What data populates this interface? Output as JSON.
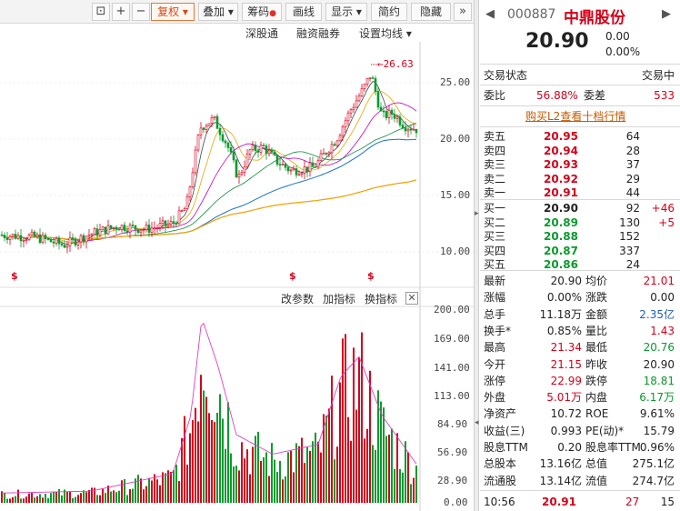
{
  "toolbar": {
    "fuquan_label": "复权",
    "diejia_label": "叠加",
    "chouma_label": "筹码",
    "huaxian_label": "画线",
    "xianshi_label": "显示",
    "jianyue_label": "简约",
    "yincang_label": "隐藏"
  },
  "subtoolbar": {
    "shengutong": "深股通",
    "rongzi": "融资融券",
    "ma_settings": "设置均线"
  },
  "price_axis": [
    "25.00",
    "20.00",
    "15.00",
    "10.00"
  ],
  "volume_axis": [
    "200.00",
    "169.00",
    "141.00",
    "113.00",
    "84.90",
    "56.90",
    "28.90",
    "0.00"
  ],
  "high_marker": "26.63",
  "vol_tools": {
    "change_params": "改参数",
    "add_indicator": "加指标",
    "switch_indicator": "换指标"
  },
  "quote": {
    "code": "000887",
    "name": "中鼎股份",
    "price": "20.90",
    "change": "0.00",
    "change_pct": "0.00%",
    "status_label": "交易状态",
    "status_value": "交易中",
    "weibi_label": "委比",
    "weibi_value": "56.88%",
    "weicha_label": "委差",
    "weicha_value": "533",
    "l2_link": "购买L2查看十档行情"
  },
  "asks": [
    {
      "label": "卖五",
      "price": "20.95",
      "vol": "64",
      "delta": ""
    },
    {
      "label": "卖四",
      "price": "20.94",
      "vol": "28",
      "delta": ""
    },
    {
      "label": "卖三",
      "price": "20.93",
      "vol": "37",
      "delta": ""
    },
    {
      "label": "卖二",
      "price": "20.92",
      "vol": "29",
      "delta": ""
    },
    {
      "label": "卖一",
      "price": "20.91",
      "vol": "44",
      "delta": ""
    }
  ],
  "bids": [
    {
      "label": "买一",
      "price": "20.90",
      "vol": "92",
      "delta": "+46"
    },
    {
      "label": "买二",
      "price": "20.89",
      "vol": "130",
      "delta": "+5"
    },
    {
      "label": "买三",
      "price": "20.88",
      "vol": "152",
      "delta": ""
    },
    {
      "label": "买四",
      "price": "20.87",
      "vol": "337",
      "delta": ""
    },
    {
      "label": "买五",
      "price": "20.86",
      "vol": "24",
      "delta": ""
    }
  ],
  "stats": [
    {
      "l1": "最新",
      "v1": "20.90",
      "c1": "",
      "l2": "均价",
      "v2": "21.01",
      "c2": "red"
    },
    {
      "l1": "涨幅",
      "v1": "0.00%",
      "c1": "",
      "l2": "涨跌",
      "v2": "0.00",
      "c2": ""
    },
    {
      "l1": "总手",
      "v1": "11.18万",
      "c1": "",
      "l2": "金额",
      "v2": "2.35亿",
      "c2": "blue"
    },
    {
      "l1": "换手*",
      "v1": "0.85%",
      "c1": "",
      "l2": "量比",
      "v2": "1.43",
      "c2": "red"
    },
    {
      "l1": "最高",
      "v1": "21.34",
      "c1": "red",
      "l2": "最低",
      "v2": "20.76",
      "c2": "green"
    },
    {
      "l1": "今开",
      "v1": "21.15",
      "c1": "red",
      "l2": "昨收",
      "v2": "20.90",
      "c2": ""
    },
    {
      "l1": "涨停",
      "v1": "22.99",
      "c1": "red",
      "l2": "跌停",
      "v2": "18.81",
      "c2": "green"
    },
    {
      "l1": "外盘",
      "v1": "5.01万",
      "c1": "red",
      "l2": "内盘",
      "v2": "6.17万",
      "c2": "green"
    },
    {
      "l1": "净资产",
      "v1": "10.72",
      "c1": "",
      "l2": "ROE",
      "v2": "9.61%",
      "c2": ""
    },
    {
      "l1": "收益(三)",
      "v1": "0.993",
      "c1": "",
      "l2": "PE(动)*",
      "v2": "15.79",
      "c2": ""
    },
    {
      "l1": "股息TTM",
      "v1": "0.20",
      "c1": "",
      "l2": "股息率TTM",
      "v2": "0.96%",
      "c2": ""
    },
    {
      "l1": "总股本",
      "v1": "13.16亿",
      "c1": "",
      "l2": "总值",
      "v2": "275.1亿",
      "c2": ""
    },
    {
      "l1": "流通股",
      "v1": "13.14亿",
      "c1": "",
      "l2": "流值",
      "v2": "274.7亿",
      "c2": ""
    }
  ],
  "tick": {
    "time": "10:56",
    "price": "20.91",
    "vol": "27",
    "count": "15"
  },
  "colors": {
    "up": "#d4001a",
    "down": "#0a9a2c",
    "ma5": "#333333",
    "ma10": "#e0a800",
    "ma20": "#c000c0",
    "ma60": "#0a8a3a",
    "ma120": "#1c73c8",
    "ma250": "#f0a000"
  }
}
